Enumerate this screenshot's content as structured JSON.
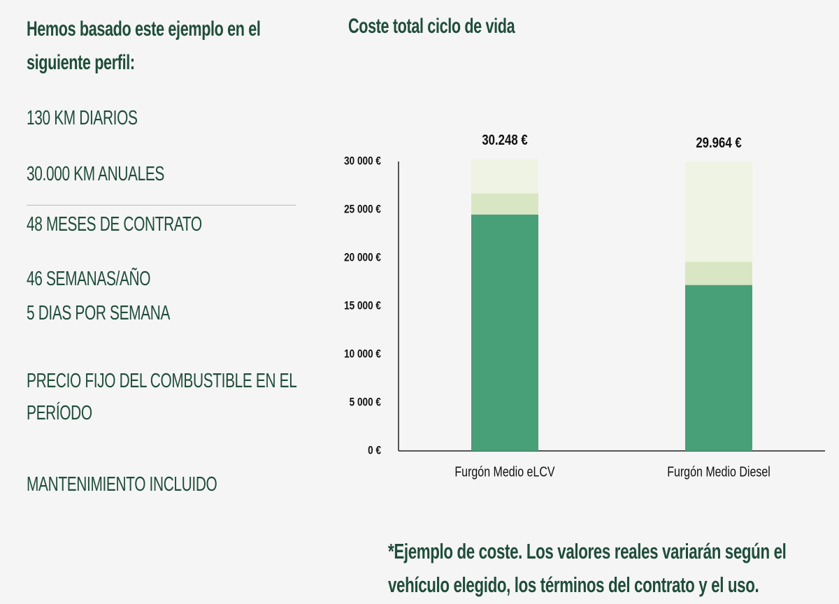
{
  "profile": {
    "title": "Hemos basado este ejemplo en el siguiente perfil:",
    "items": [
      "130 KM DIARIOS",
      "30.000 KM ANUALES",
      "48 MESES DE CONTRATO",
      "46 SEMANAS/AÑO",
      "5 DIAS POR SEMANA",
      "PRECIO FIJO DEL COMBUSTIBLE EN EL PERÍODO",
      "MANTENIMIENTO INCLUIDO"
    ]
  },
  "chart_data": {
    "type": "stacked-bar",
    "title": "Coste total ciclo de vida",
    "categories": [
      "Furgón Medio eLCV",
      "Furgón Medio Diesel"
    ],
    "series": [
      {
        "color": "#48a078",
        "values": [
          24500,
          17200
        ]
      },
      {
        "color": "#d9e6c3",
        "values": [
          2200,
          2400
        ]
      },
      {
        "color": "#eef3e3",
        "values": [
          3548,
          10364
        ]
      }
    ],
    "totals": {
      "values": [
        30248,
        29964
      ],
      "value_labels": [
        "30.248 €",
        "29.964 €"
      ]
    },
    "ylim": [
      0,
      30000
    ],
    "yticks": [
      {
        "value": 0,
        "label": "0 €"
      },
      {
        "value": 5000,
        "label": "5 000 €"
      },
      {
        "value": 10000,
        "label": "10 000 €"
      },
      {
        "value": 15000,
        "label": "15 000 €"
      },
      {
        "value": 20000,
        "label": "20 000 €"
      },
      {
        "value": 25000,
        "label": "25 000 €"
      },
      {
        "value": 30000,
        "label": "30 000 €"
      }
    ],
    "grid": false
  },
  "footnote": "*Ejemplo de coste. Los valores reales variarán según el vehículo elegido, los términos del contrato y el uso."
}
